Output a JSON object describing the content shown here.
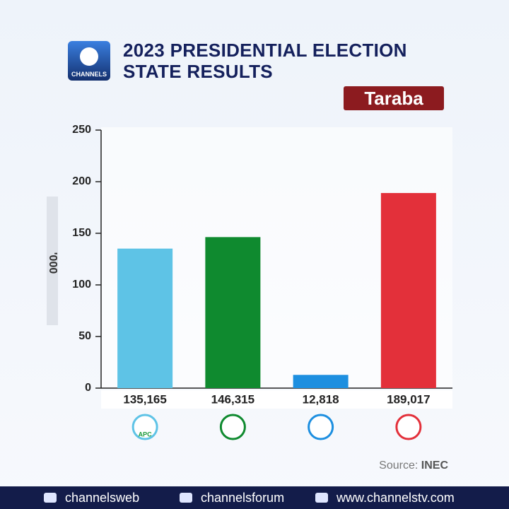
{
  "chart_data": {
    "type": "bar",
    "title": "2023 PRESIDENTIAL ELECTION STATE RESULTS",
    "subtitle": "Taraba",
    "y_label": "'000",
    "categories": [
      "APC",
      null,
      null,
      null
    ],
    "values": [
      135.165,
      146.315,
      12.818,
      189.017
    ],
    "value_labels": [
      "135,165",
      "146,315",
      "12,818",
      "189,017"
    ],
    "colors": [
      "#5ec3e6",
      "#0f8a2f",
      "#1d8fe0",
      "#e3303a"
    ],
    "ylim": [
      0,
      250
    ],
    "yticks": [
      0,
      50,
      100,
      150,
      200,
      250
    ]
  },
  "branding": {
    "logo": "CHANNELS",
    "source_label": "Source:",
    "source": "INEC",
    "social": [
      "channelsweb",
      "channelsforum",
      "www.channelstv.com"
    ]
  }
}
